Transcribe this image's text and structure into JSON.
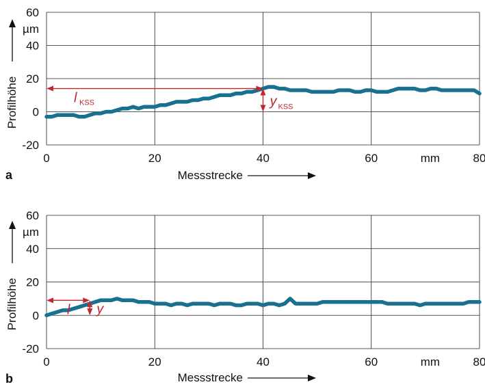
{
  "chart_data": [
    {
      "panel_label": "a",
      "type": "line",
      "title": "",
      "xlabel": "Messstrecke",
      "xunit": "mm",
      "ylabel": "Profilhöhe",
      "yunit": "µm",
      "xlim": [
        0,
        80
      ],
      "ylim": [
        -20,
        60
      ],
      "x_ticks": [
        "0",
        "20",
        "40",
        "60",
        "80"
      ],
      "y_ticks": [
        "-20",
        "0",
        "20",
        "40",
        "60"
      ],
      "grid": true,
      "line_color": "#17718f",
      "annotation_color": "#c0282d",
      "annotations": {
        "length_label": "l",
        "length_sub": "KSS",
        "height_label": "y",
        "height_sub": "KSS",
        "length_x": [
          0,
          40
        ],
        "length_y": 14,
        "height_x": 40,
        "height_y": [
          0,
          14
        ]
      },
      "series": [
        {
          "x": [
            0,
            1,
            2,
            3,
            4,
            5,
            6,
            7,
            8,
            9,
            10,
            11,
            12,
            13,
            14,
            15,
            16,
            17,
            18,
            19,
            20,
            21,
            22,
            23,
            24,
            25,
            26,
            27,
            28,
            29,
            30,
            31,
            32,
            33,
            34,
            35,
            36,
            37,
            38,
            39,
            40,
            41,
            42,
            43,
            44,
            45,
            46,
            47,
            48,
            49,
            50,
            51,
            52,
            53,
            54,
            55,
            56,
            57,
            58,
            59,
            60,
            61,
            62,
            63,
            64,
            65,
            66,
            67,
            68,
            69,
            70,
            71,
            72,
            73,
            74,
            75,
            76,
            77,
            78,
            79,
            80
          ],
          "y": [
            -3,
            -3,
            -2,
            -2,
            -2,
            -2,
            -3,
            -3,
            -2,
            -1,
            -1,
            0,
            0,
            1,
            2,
            2,
            3,
            2,
            3,
            3,
            3,
            4,
            4,
            5,
            6,
            6,
            6,
            7,
            7,
            8,
            8,
            9,
            10,
            10,
            10,
            11,
            11,
            12,
            12,
            13,
            14,
            15,
            15,
            14,
            14,
            13,
            13,
            13,
            13,
            12,
            12,
            12,
            12,
            12,
            13,
            13,
            13,
            12,
            12,
            13,
            13,
            12,
            12,
            12,
            13,
            14,
            14,
            14,
            14,
            13,
            13,
            14,
            14,
            13,
            13,
            13,
            13,
            13,
            13,
            13,
            11
          ]
        }
      ]
    },
    {
      "panel_label": "b",
      "type": "line",
      "title": "",
      "xlabel": "Messstrecke",
      "xunit": "mm",
      "ylabel": "Profilhöhe",
      "yunit": "µm",
      "xlim": [
        0,
        80
      ],
      "ylim": [
        -20,
        60
      ],
      "x_ticks": [
        "0",
        "20",
        "40",
        "60",
        "80"
      ],
      "y_ticks": [
        "-20",
        "0",
        "20",
        "40",
        "60"
      ],
      "grid": true,
      "line_color": "#17718f",
      "annotation_color": "#c0282d",
      "annotations": {
        "length_label": "l",
        "length_sub": "",
        "height_label": "y",
        "height_sub": "",
        "length_x": [
          0,
          8
        ],
        "length_y": 9,
        "height_x": 8,
        "height_y": [
          0,
          9
        ]
      },
      "series": [
        {
          "x": [
            0,
            1,
            2,
            3,
            4,
            5,
            6,
            7,
            8,
            9,
            10,
            11,
            12,
            13,
            14,
            15,
            16,
            17,
            18,
            19,
            20,
            21,
            22,
            23,
            24,
            25,
            26,
            27,
            28,
            29,
            30,
            31,
            32,
            33,
            34,
            35,
            36,
            37,
            38,
            39,
            40,
            41,
            42,
            43,
            44,
            45,
            46,
            47,
            48,
            49,
            50,
            51,
            52,
            53,
            54,
            55,
            56,
            57,
            58,
            59,
            60,
            61,
            62,
            63,
            64,
            65,
            66,
            67,
            68,
            69,
            70,
            71,
            72,
            73,
            74,
            75,
            76,
            77,
            78,
            79,
            80
          ],
          "y": [
            0,
            1,
            2,
            3,
            3,
            4,
            5,
            6,
            7,
            8,
            9,
            9,
            9,
            10,
            9,
            9,
            9,
            8,
            8,
            8,
            7,
            7,
            7,
            6,
            7,
            7,
            6,
            7,
            7,
            7,
            7,
            6,
            7,
            7,
            7,
            6,
            6,
            7,
            7,
            7,
            6,
            7,
            7,
            6,
            7,
            10,
            7,
            7,
            7,
            7,
            7,
            8,
            8,
            8,
            8,
            8,
            8,
            8,
            8,
            8,
            8,
            8,
            8,
            7,
            7,
            7,
            7,
            7,
            7,
            6,
            7,
            7,
            7,
            7,
            7,
            7,
            7,
            7,
            8,
            8,
            8
          ]
        }
      ]
    }
  ]
}
